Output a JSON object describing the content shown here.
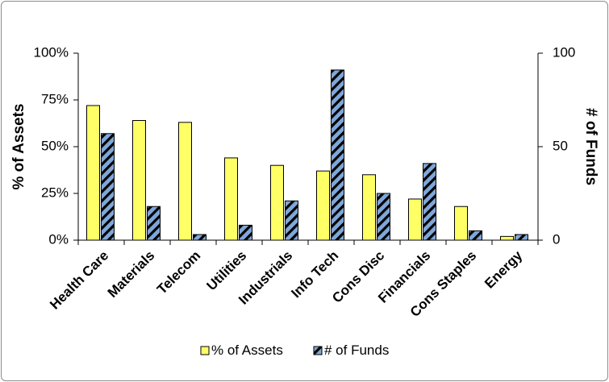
{
  "chart_data": {
    "type": "bar",
    "categories": [
      "Health Care",
      "Materials",
      "Telecom",
      "Utilities",
      "Industrials",
      "Info Tech",
      "Cons Disc",
      "Financials",
      "Cons Staples",
      "Energy"
    ],
    "series": [
      {
        "name": "% of Assets",
        "axis": "left",
        "unit": "%",
        "values": [
          72,
          64,
          63,
          44,
          40,
          37,
          35,
          22,
          18,
          2
        ],
        "color": "#ffff66",
        "pattern": "solid"
      },
      {
        "name": "# of Funds",
        "axis": "right",
        "values": [
          57,
          18,
          3,
          8,
          21,
          91,
          25,
          41,
          5,
          3
        ],
        "color": "#7fa7d9",
        "pattern": "diagonal-stripes-black"
      }
    ],
    "ylabel": "% of Assets",
    "ylim": [
      0,
      100
    ],
    "yticks": [
      "0%",
      "25%",
      "50%",
      "75%",
      "100%"
    ],
    "y2label": "# of Funds",
    "y2lim": [
      0,
      100
    ],
    "y2ticks": [
      "0",
      "50",
      "100"
    ],
    "grid": false,
    "legend": "bottom"
  }
}
